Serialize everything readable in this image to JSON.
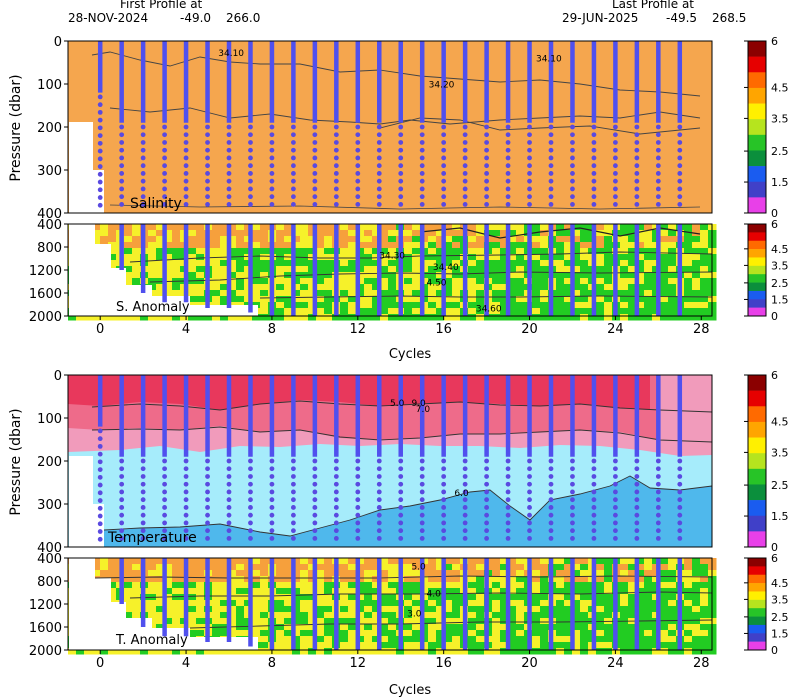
{
  "header": {
    "first_label": "First Profile at",
    "first_date": "28-NOV-2024",
    "first_lon": "-49.0",
    "first_lat": "266.0",
    "last_label": "Last Profile at",
    "last_date": "29-JUN-2025",
    "last_lon": "-49.5",
    "last_lat": "268.5"
  },
  "colors": {
    "salinity_fill": "#f5a64e",
    "profile_line": "#5050ee",
    "dot": "#5a4ae0",
    "temp_warm1": "#e8385c",
    "temp_warm2": "#ee6b8a",
    "temp_warm3": "#f19bbb",
    "temp_light": "#a6ecfb",
    "temp_deep": "#4fb8ec",
    "anomaly_green": "#22cc22",
    "anomaly_yellow": "#f6f12a",
    "anomaly_orange": "#f6a03c"
  },
  "colorbar": {
    "ticks": [
      "6",
      "4.5",
      "3.5",
      "2.5",
      "1.5",
      "0"
    ],
    "colors": [
      "#8b0000",
      "#e60000",
      "#ff6a00",
      "#ffa500",
      "#fff000",
      "#b6e41e",
      "#27c427",
      "#0b8f3c",
      "#1a5cf0",
      "#4040c8",
      "#e840e8"
    ]
  },
  "chart_data": [
    {
      "type": "heatmap",
      "name_label": "Salinity",
      "ylabel": "Pressure (dbar)",
      "xlim": [
        -1.5,
        28.5
      ],
      "ylim": [
        0,
        400
      ],
      "yticks": [
        "0",
        "100",
        "200",
        "300",
        "400"
      ],
      "contours": [
        {
          "label": "34.10",
          "x": 5.5,
          "y": 35
        },
        {
          "label": "34.10",
          "x": 20.3,
          "y": 48
        },
        {
          "label": "34.20",
          "x": 15.3,
          "y": 108
        }
      ]
    },
    {
      "type": "heatmap",
      "name_label": "S. Anomaly",
      "ylim": [
        400,
        2000
      ],
      "yticks": [
        "400",
        "800",
        "1200",
        "1600",
        "2000"
      ],
      "xticks": [
        "0",
        "4",
        "8",
        "12",
        "16",
        "20",
        "24",
        "28"
      ],
      "xlabel": "Cycles",
      "contours": [
        {
          "label": "34.30",
          "x": 13,
          "y": 1000
        },
        {
          "label": "34.40",
          "x": 15.5,
          "y": 1200
        },
        {
          "label": "4.50",
          "x": 15.2,
          "y": 1470
        },
        {
          "label": "34.60",
          "x": 17.5,
          "y": 1920
        }
      ]
    },
    {
      "type": "heatmap",
      "name_label": "Temperature",
      "ylabel": "Pressure (dbar)",
      "ylim": [
        0,
        400
      ],
      "yticks": [
        "0",
        "100",
        "200",
        "300",
        "400"
      ],
      "contours": [
        {
          "label": "5.0",
          "x": 13.5,
          "y": 72
        },
        {
          "label": "9.0",
          "x": 14.5,
          "y": 72
        },
        {
          "label": "7.0",
          "x": 14.7,
          "y": 86
        },
        {
          "label": "6.0",
          "x": 16.5,
          "y": 281
        }
      ]
    },
    {
      "type": "heatmap",
      "name_label": "T. Anomaly",
      "ylim": [
        400,
        2000
      ],
      "yticks": [
        "400",
        "800",
        "1200",
        "1600",
        "2000"
      ],
      "xticks": [
        "0",
        "4",
        "8",
        "12",
        "16",
        "20",
        "24",
        "28"
      ],
      "xlabel": "Cycles",
      "contours": [
        {
          "label": "5.0",
          "x": 14.5,
          "y": 600
        },
        {
          "label": "4.0",
          "x": 15.2,
          "y": 1070
        },
        {
          "label": "3.0",
          "x": 14.3,
          "y": 1420
        }
      ]
    }
  ],
  "profiles": {
    "cycles": [
      0,
      1,
      2,
      3,
      4,
      5,
      6,
      7,
      8,
      9,
      10,
      11,
      12,
      13,
      14,
      15,
      16,
      17,
      18,
      19,
      20,
      21,
      22,
      23,
      24,
      25,
      26,
      27
    ],
    "shallow_end_dbar": [
      120,
      190,
      190,
      190,
      190,
      190,
      190,
      190,
      190,
      190,
      190,
      190,
      190,
      190,
      190,
      190,
      190,
      190,
      190,
      190,
      190,
      190,
      190,
      190,
      190,
      190,
      190,
      190
    ],
    "deep_end_dbar": [
      400,
      1200,
      1600,
      1760,
      1760,
      1860,
      1860,
      1940,
      2000,
      2000,
      2000,
      2000,
      2000,
      2000,
      2000,
      2000,
      2000,
      2000,
      2000,
      2000,
      2000,
      2000,
      2000,
      2000,
      2000,
      2000,
      2000,
      2000
    ]
  }
}
